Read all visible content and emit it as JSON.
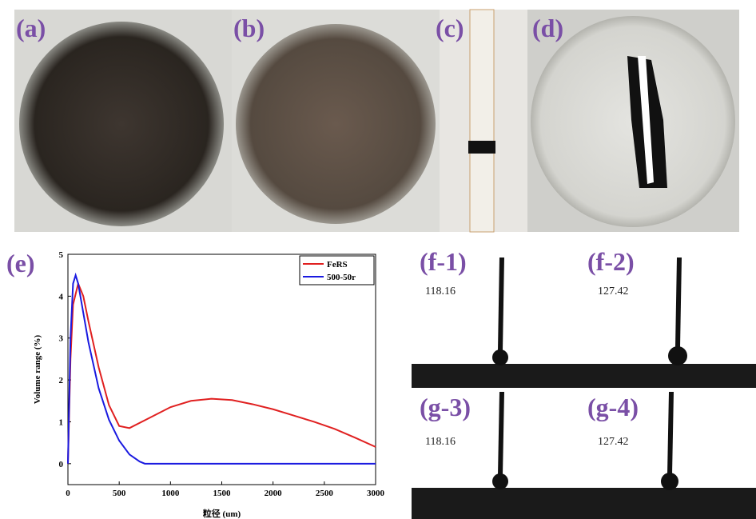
{
  "photo_labels": [
    "(a)",
    "(b)",
    "(c)",
    "(d)"
  ],
  "contact_angle_panels": [
    {
      "label": "(f-1)",
      "angle": 118.16
    },
    {
      "label": "(f-2)",
      "angle": 127.42
    },
    {
      "label": "(g-3)",
      "angle": 118.16
    },
    {
      "label": "(g-4)",
      "angle": 127.42
    }
  ],
  "chart_label": "(e)",
  "chart_data": {
    "type": "line",
    "x_label": "粒径 (um)",
    "y_label": "Volume range (%)",
    "xlim": [
      0,
      3000
    ],
    "ylim": [
      -0.5,
      5
    ],
    "xticks": [
      0,
      500,
      1000,
      1500,
      2000,
      2500,
      3000
    ],
    "yticks": [
      0,
      1,
      2,
      3,
      4,
      5
    ],
    "legend": "upper right",
    "series": [
      {
        "name": "FeRS",
        "color": "#e02020",
        "x": [
          0,
          25,
          50,
          100,
          150,
          200,
          300,
          400,
          500,
          600,
          800,
          1000,
          1200,
          1400,
          1600,
          1800,
          2000,
          2200,
          2400,
          2600,
          2800,
          3000
        ],
        "values": [
          0,
          2.5,
          3.8,
          4.3,
          4.0,
          3.4,
          2.3,
          1.4,
          0.9,
          0.85,
          1.1,
          1.35,
          1.5,
          1.55,
          1.52,
          1.42,
          1.3,
          1.15,
          1.0,
          0.83,
          0.62,
          0.4
        ]
      },
      {
        "name": "500-50r",
        "color": "#1a1ae0",
        "x": [
          0,
          25,
          50,
          75,
          100,
          150,
          200,
          300,
          400,
          500,
          600,
          700,
          750,
          1000,
          2000,
          3000
        ],
        "values": [
          0,
          3.0,
          4.3,
          4.5,
          4.3,
          3.6,
          2.9,
          1.8,
          1.05,
          0.55,
          0.22,
          0.05,
          0,
          0,
          0,
          0
        ]
      }
    ]
  }
}
